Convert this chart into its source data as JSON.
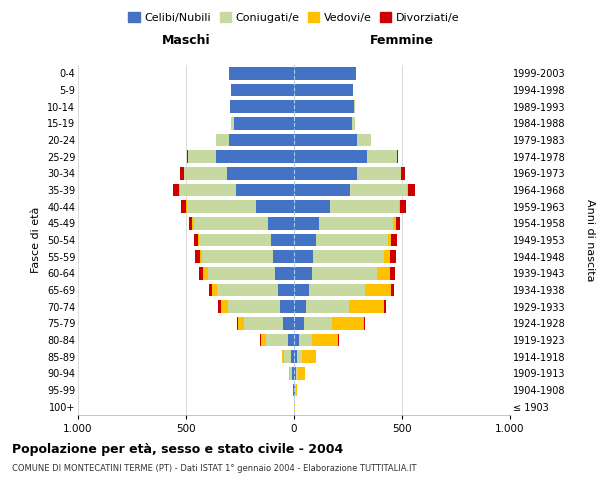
{
  "age_groups": [
    "100+",
    "95-99",
    "90-94",
    "85-89",
    "80-84",
    "75-79",
    "70-74",
    "65-69",
    "60-64",
    "55-59",
    "50-54",
    "45-49",
    "40-44",
    "35-39",
    "30-34",
    "25-29",
    "20-24",
    "15-19",
    "10-14",
    "5-9",
    "0-4"
  ],
  "birth_years": [
    "≤ 1903",
    "1904-1908",
    "1909-1913",
    "1914-1918",
    "1919-1923",
    "1924-1928",
    "1929-1933",
    "1934-1938",
    "1939-1943",
    "1944-1948",
    "1949-1953",
    "1954-1958",
    "1959-1963",
    "1964-1968",
    "1969-1973",
    "1974-1978",
    "1979-1983",
    "1984-1988",
    "1989-1993",
    "1994-1998",
    "1999-2003"
  ],
  "males": {
    "celibi": [
      2,
      4,
      8,
      15,
      30,
      50,
      65,
      75,
      90,
      95,
      105,
      120,
      175,
      270,
      310,
      360,
      300,
      280,
      295,
      290,
      300
    ],
    "coniugati": [
      0,
      2,
      10,
      30,
      100,
      180,
      240,
      280,
      310,
      330,
      335,
      345,
      320,
      260,
      200,
      130,
      60,
      10,
      2,
      0,
      0
    ],
    "vedovi": [
      0,
      0,
      5,
      10,
      25,
      30,
      35,
      25,
      20,
      10,
      5,
      5,
      3,
      2,
      1,
      0,
      0,
      0,
      0,
      0,
      0
    ],
    "divorziati": [
      0,
      0,
      0,
      0,
      2,
      5,
      10,
      15,
      20,
      25,
      20,
      18,
      25,
      30,
      15,
      5,
      2,
      0,
      0,
      0,
      0
    ]
  },
  "females": {
    "nubili": [
      2,
      5,
      10,
      15,
      25,
      45,
      55,
      70,
      85,
      90,
      100,
      115,
      165,
      260,
      290,
      340,
      290,
      270,
      280,
      275,
      285
    ],
    "coniugate": [
      0,
      2,
      8,
      20,
      60,
      130,
      200,
      260,
      300,
      325,
      335,
      345,
      320,
      265,
      205,
      135,
      65,
      12,
      2,
      0,
      0
    ],
    "vedove": [
      2,
      8,
      35,
      65,
      120,
      150,
      160,
      120,
      60,
      30,
      15,
      10,
      5,
      3,
      2,
      1,
      0,
      0,
      0,
      0,
      0
    ],
    "divorziate": [
      0,
      0,
      0,
      0,
      2,
      5,
      10,
      15,
      22,
      28,
      25,
      22,
      28,
      32,
      18,
      7,
      3,
      0,
      0,
      0,
      0
    ]
  },
  "colors": {
    "celibi": "#4472c4",
    "coniugati": "#c5d9a0",
    "vedovi": "#ffc000",
    "divorziati": "#cc0000"
  },
  "xlim": 1000,
  "title": "Popolazione per età, sesso e stato civile - 2004",
  "subtitle": "COMUNE DI MONTECATINI TERME (PT) - Dati ISTAT 1° gennaio 2004 - Elaborazione TUTTITALIA.IT",
  "ylabel_left": "Fasce di età",
  "ylabel_right": "Anni di nascita",
  "xlabel_left": "Maschi",
  "xlabel_right": "Femmine",
  "legend_labels": [
    "Celibi/Nubili",
    "Coniugati/e",
    "Vedovi/e",
    "Divorziati/e"
  ],
  "xtick_labels": [
    "1.000",
    "500",
    "0",
    "500",
    "1.000"
  ],
  "xtick_vals": [
    -1000,
    -500,
    0,
    500,
    1000
  ],
  "bg_color": "#ffffff"
}
